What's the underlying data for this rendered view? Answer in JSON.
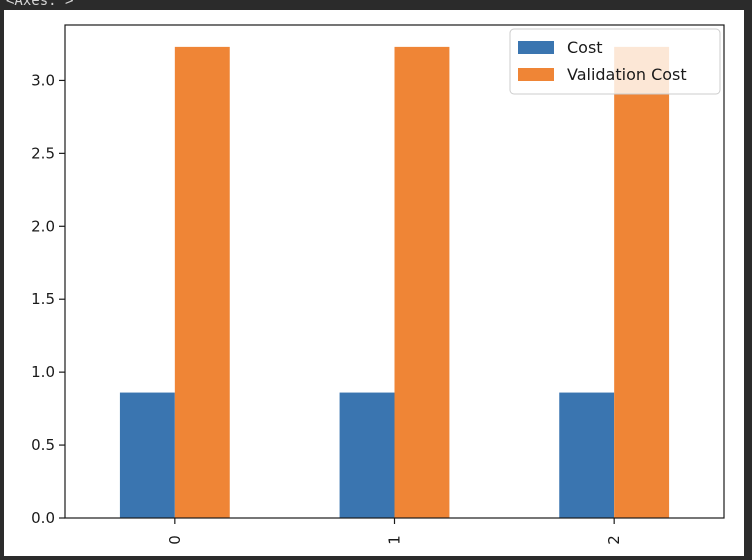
{
  "output": {
    "repr_text": "<Axes: >"
  },
  "chart_data": {
    "type": "bar",
    "categories": [
      "0",
      "1",
      "2"
    ],
    "series": [
      {
        "name": "Cost",
        "values": [
          0.86,
          0.86,
          0.86
        ],
        "color": "#3a75b0"
      },
      {
        "name": "Validation Cost",
        "values": [
          3.23,
          3.23,
          3.23
        ],
        "color": "#ef8536"
      }
    ],
    "title": "",
    "xlabel": "",
    "ylabel": "",
    "ylim": [
      0,
      3.38
    ],
    "yticks": [
      "0.0",
      "0.5",
      "1.0",
      "1.5",
      "2.0",
      "2.5",
      "3.0"
    ],
    "ytick_values": [
      0,
      0.5,
      1.0,
      1.5,
      2.0,
      2.5,
      3.0
    ],
    "xtick_rotation": "vertical",
    "legend": "top-right",
    "grid": false
  }
}
